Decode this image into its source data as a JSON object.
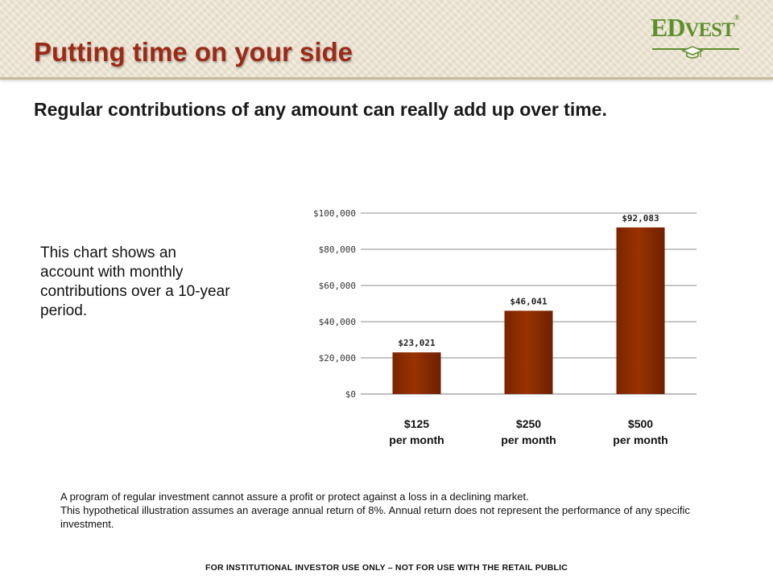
{
  "header": {
    "title": "Putting time on your side",
    "logo": {
      "main": "ED",
      "rest": "VEST",
      "mark": "®",
      "icon": "graduation-cap-icon"
    }
  },
  "subtitle": "Regular contributions of any amount can really add up over time.",
  "description": "This chart shows an account with monthly contributions over a 10-year period.",
  "chart_data": {
    "type": "bar",
    "categories": [
      {
        "line1": "$125",
        "line2": "per month"
      },
      {
        "line1": "$250",
        "line2": "per month"
      },
      {
        "line1": "$500",
        "line2": "per month"
      }
    ],
    "values": [
      23021,
      46041,
      92083
    ],
    "data_labels": [
      "$23,021",
      "$46,041",
      "$92,083"
    ],
    "yticks": [
      0,
      20000,
      40000,
      60000,
      80000,
      100000
    ],
    "ytick_labels": [
      "$0",
      "$20,000",
      "$40,000",
      "$60,000",
      "$80,000",
      "$100,000"
    ],
    "ylim": [
      0,
      100000
    ],
    "grid": true,
    "legend": "none",
    "bar_color": "#993300"
  },
  "disclaimer": [
    "A program of regular investment cannot assure a profit or protect against a loss in a declining market.",
    "This hypothetical illustration assumes an average annual return of 8%. Annual return does not represent the performance of any specific investment."
  ],
  "footer": "FOR INSTITUTIONAL INVESTOR USE ONLY – NOT FOR USE WITH THE RETAIL PUBLIC"
}
